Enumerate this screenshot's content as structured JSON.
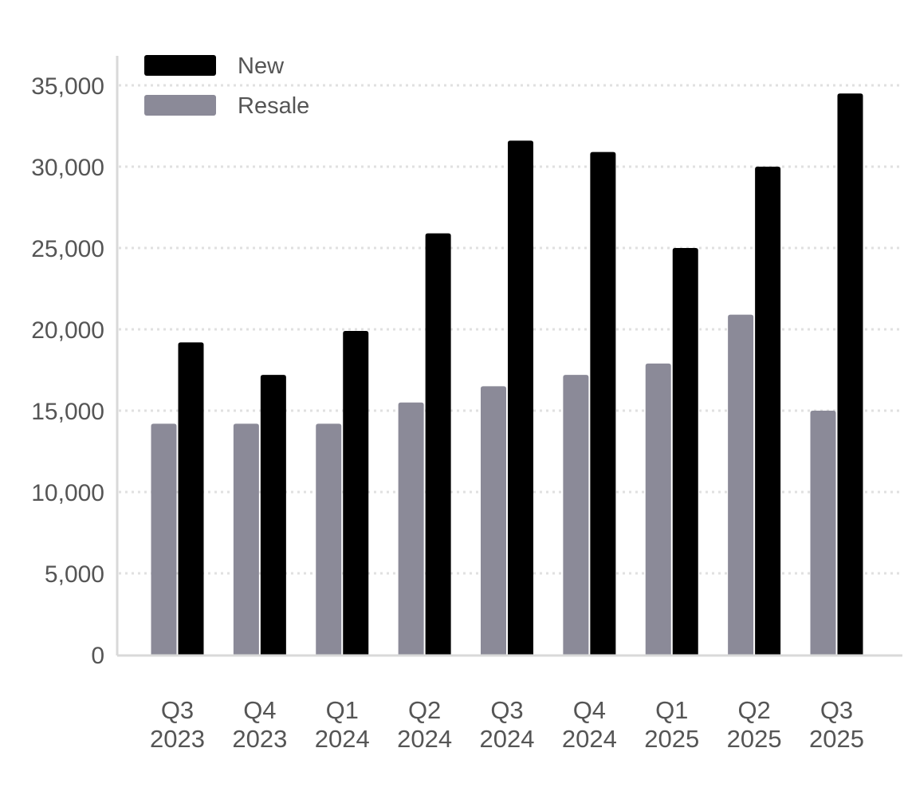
{
  "chart_data": {
    "type": "bar",
    "title": "",
    "xlabel": "",
    "ylabel": "",
    "categories": [
      [
        "Q3",
        "2023"
      ],
      [
        "Q4",
        "2023"
      ],
      [
        "Q1",
        "2024"
      ],
      [
        "Q2",
        "2024"
      ],
      [
        "Q3",
        "2024"
      ],
      [
        "Q4",
        "2024"
      ],
      [
        "Q1",
        "2025"
      ],
      [
        "Q2",
        "2025"
      ],
      [
        "Q3",
        "2025"
      ]
    ],
    "series": [
      {
        "name": "Resale",
        "color": "#8b8a98",
        "values": [
          14200,
          14200,
          14200,
          15500,
          16500,
          17200,
          17900,
          20900,
          15000
        ]
      },
      {
        "name": "New",
        "color": "#000000",
        "values": [
          19200,
          17200,
          19900,
          25900,
          31600,
          30900,
          25000,
          30000,
          34500
        ]
      }
    ],
    "ylim": [
      0,
      37000
    ],
    "yticks": [
      0,
      5000,
      10000,
      15000,
      20000,
      25000,
      30000,
      35000
    ],
    "ytick_labels": [
      "0",
      "5,000",
      "10,000",
      "15,000",
      "20,000",
      "25,000",
      "30,000",
      "35,000"
    ],
    "grid": "horizontal dotted",
    "legend": {
      "position": "top-left",
      "order": [
        "New",
        "Resale"
      ]
    }
  }
}
